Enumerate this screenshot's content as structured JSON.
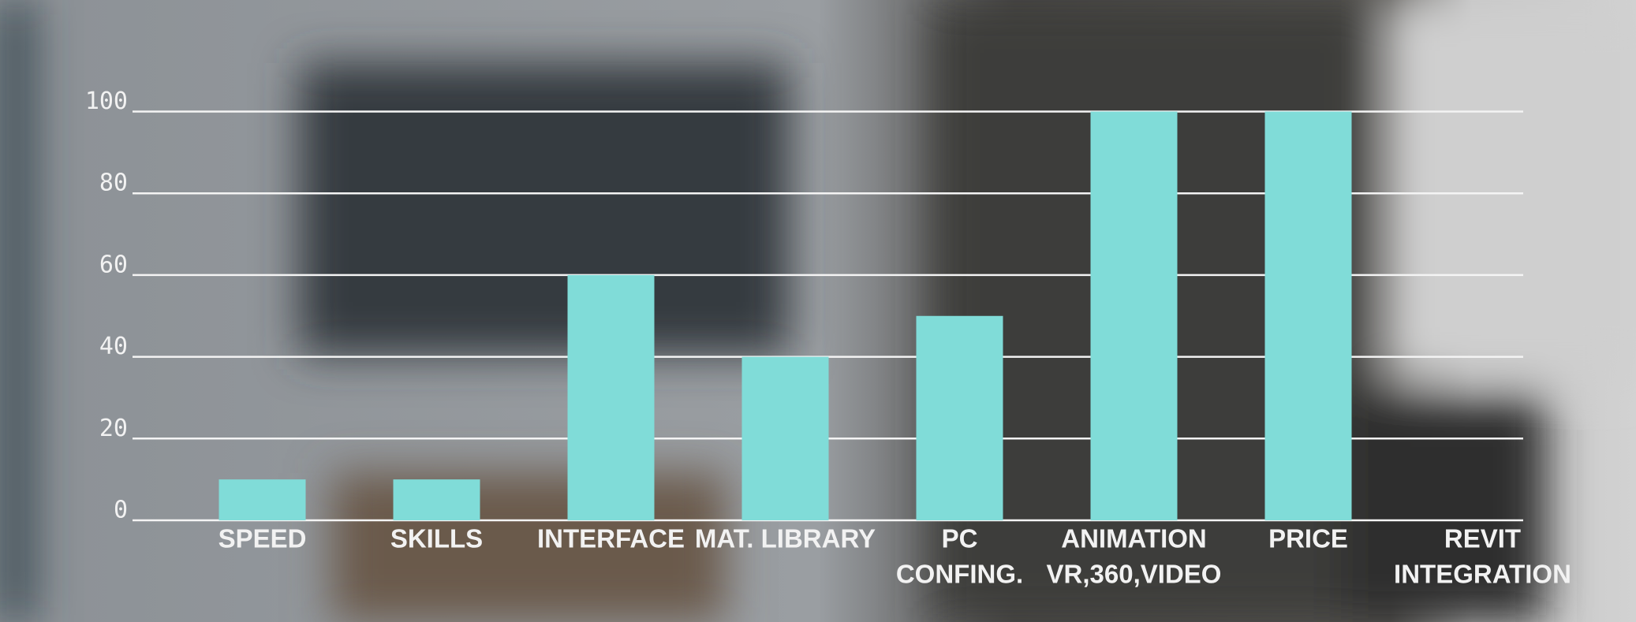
{
  "chart_data": {
    "type": "bar",
    "categories": [
      [
        "SPEED"
      ],
      [
        "SKILLS"
      ],
      [
        "INTERFACE"
      ],
      [
        "MAT. LIBRARY"
      ],
      [
        "PC",
        "CONFING."
      ],
      [
        "ANIMATION",
        "VR,360,VIDEO"
      ],
      [
        "PRICE"
      ],
      [
        "REVIT",
        "INTEGRATION"
      ]
    ],
    "values": [
      10,
      10,
      60,
      40,
      50,
      100,
      100,
      null
    ],
    "color": "#80dcd8",
    "ylim": [
      0,
      100
    ],
    "yticks": [
      0,
      20,
      40,
      60,
      80,
      100
    ],
    "grid": true
  }
}
